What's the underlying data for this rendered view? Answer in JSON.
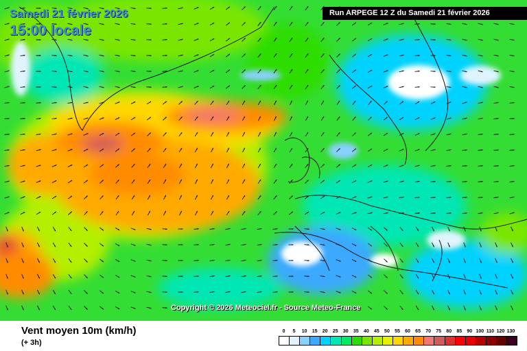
{
  "header": {
    "date": "Samedi 21 février 2026",
    "time": "15:00 locale",
    "run": "Run ARPEGE 12 Z du Samedi 21 février 2026"
  },
  "map": {
    "copyright": "Copyright © 2026 Meteociel.fr - Source Meteo-France",
    "background_color": "#33dd33"
  },
  "legend": {
    "variable": "Vent moyen 10m (km/h)",
    "step": "(+ 3h)",
    "ticks": [
      "0",
      "5",
      "10",
      "15",
      "20",
      "25",
      "30",
      "35",
      "40",
      "45",
      "50",
      "55",
      "60",
      "65",
      "70",
      "75",
      "80",
      "85",
      "90",
      "100",
      "110",
      "120",
      "130"
    ],
    "colors": [
      "#ffffff",
      "#dff4ff",
      "#88d0ff",
      "#3aa9ff",
      "#00d2ff",
      "#00e6b4",
      "#00ea66",
      "#2ddd00",
      "#7ae600",
      "#b4ef00",
      "#e6f000",
      "#ffd700",
      "#ffaa00",
      "#ff8c00",
      "#f07870",
      "#d25a5a",
      "#dc3232",
      "#ff0000",
      "#e60000",
      "#b40000",
      "#8c0000",
      "#640000",
      "#3c001e"
    ]
  }
}
